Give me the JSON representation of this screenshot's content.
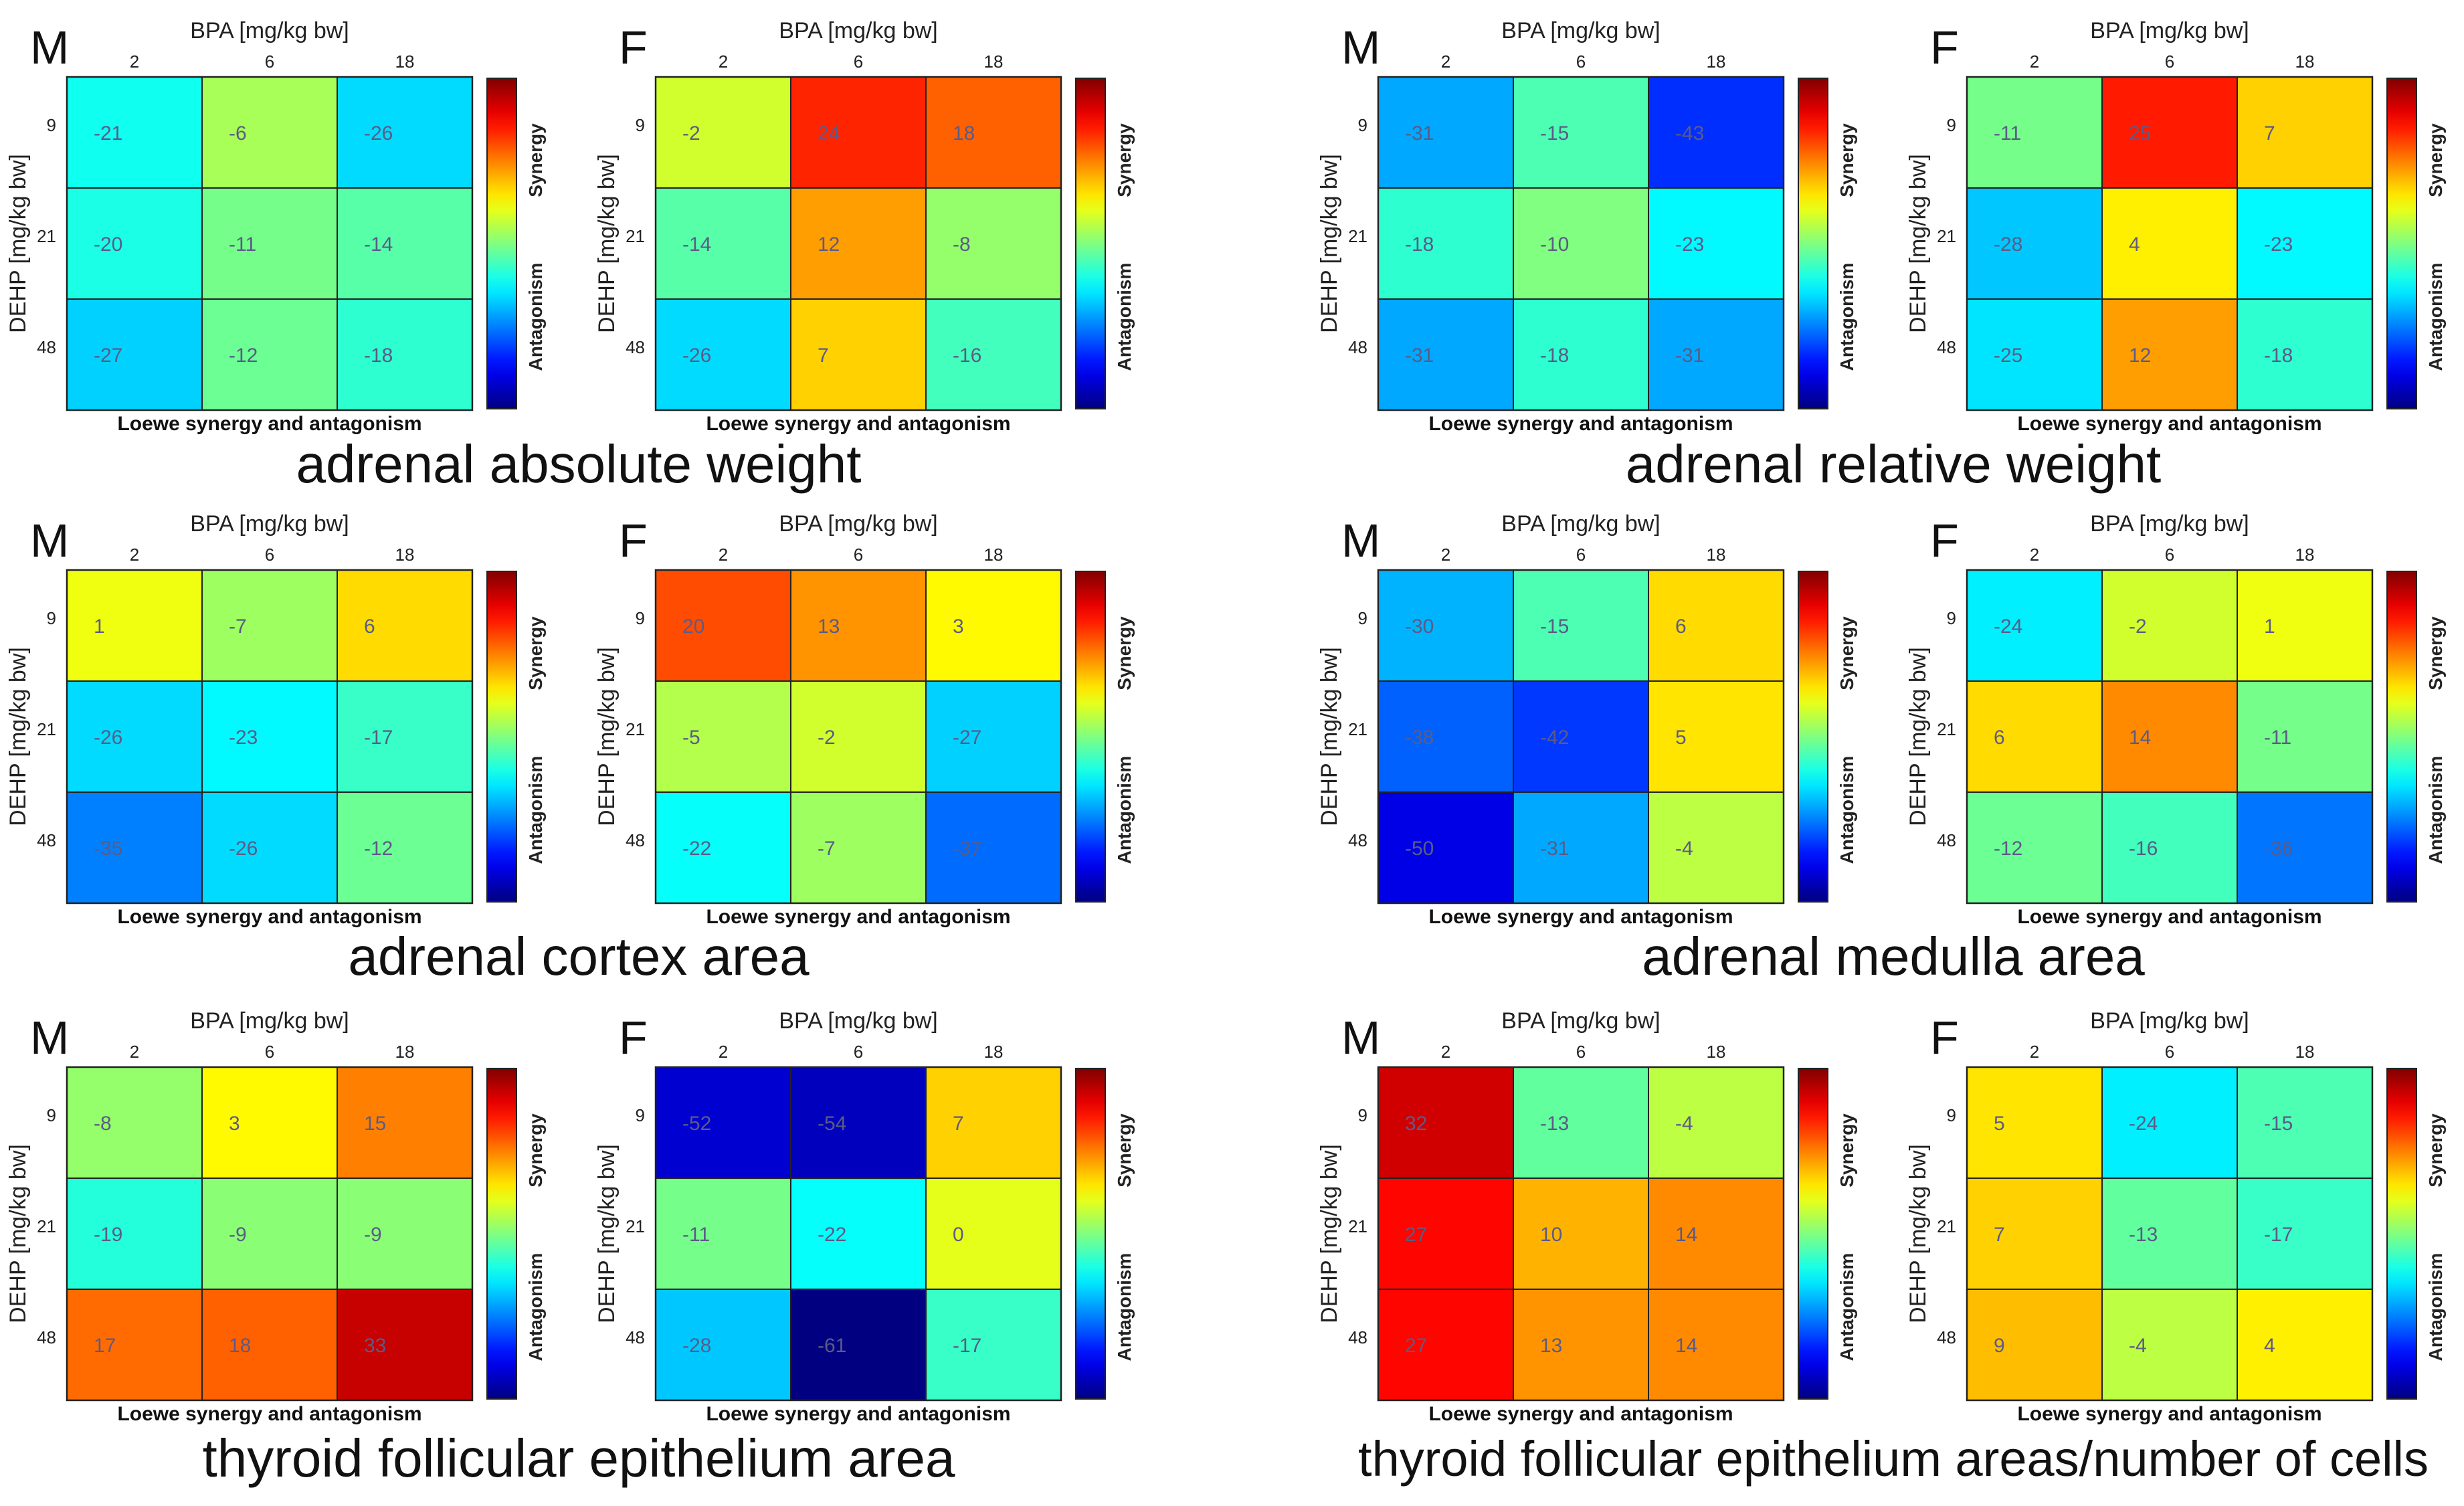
{
  "common": {
    "x_axis_label": "BPA [mg/kg bw]",
    "y_axis_label": "DEHP [mg/kg bw]",
    "x_ticks": [
      "2",
      "6",
      "18"
    ],
    "y_ticks": [
      "9",
      "21",
      "48"
    ],
    "colorbar_top_label": "Synergy",
    "colorbar_bottom_label": "Antagonism",
    "bottom_label": "Loewe synergy and antagonism",
    "value_range": [
      -60,
      40
    ]
  },
  "captions": [
    "adrenal absolute weight",
    "adrenal relative weight",
    "adrenal cortex area",
    "adrenal medulla area",
    "thyroid follicular epithelium area",
    "thyroid follicular epithelium areas/number of cells"
  ],
  "chart_data": [
    {
      "type": "heatmap",
      "panel": "M",
      "group": "adrenal absolute weight",
      "x_categories": [
        "2",
        "6",
        "18"
      ],
      "y_categories": [
        "9",
        "21",
        "48"
      ],
      "values": [
        [
          -21,
          -6,
          -26
        ],
        [
          -20,
          -11,
          -14
        ],
        [
          -27,
          -12,
          -18
        ]
      ]
    },
    {
      "type": "heatmap",
      "panel": "F",
      "group": "adrenal absolute weight",
      "x_categories": [
        "2",
        "6",
        "18"
      ],
      "y_categories": [
        "9",
        "21",
        "48"
      ],
      "values": [
        [
          -2,
          24,
          18
        ],
        [
          -14,
          12,
          -8
        ],
        [
          -26,
          7,
          -16
        ]
      ]
    },
    {
      "type": "heatmap",
      "panel": "M",
      "group": "adrenal relative weight",
      "x_categories": [
        "2",
        "6",
        "18"
      ],
      "y_categories": [
        "9",
        "21",
        "48"
      ],
      "values": [
        [
          -31,
          -15,
          -43
        ],
        [
          -18,
          -10,
          -23
        ],
        [
          -31,
          -18,
          -31
        ]
      ]
    },
    {
      "type": "heatmap",
      "panel": "F",
      "group": "adrenal relative weight",
      "x_categories": [
        "2",
        "6",
        "18"
      ],
      "y_categories": [
        "9",
        "21",
        "48"
      ],
      "values": [
        [
          -11,
          25,
          7
        ],
        [
          -28,
          4,
          -23
        ],
        [
          -25,
          12,
          -18
        ]
      ]
    },
    {
      "type": "heatmap",
      "panel": "M",
      "group": "adrenal cortex area",
      "x_categories": [
        "2",
        "6",
        "18"
      ],
      "y_categories": [
        "9",
        "21",
        "48"
      ],
      "values": [
        [
          1,
          -7,
          6
        ],
        [
          -26,
          -23,
          -17
        ],
        [
          -35,
          -26,
          -12
        ]
      ]
    },
    {
      "type": "heatmap",
      "panel": "F",
      "group": "adrenal cortex area",
      "x_categories": [
        "2",
        "6",
        "18"
      ],
      "y_categories": [
        "9",
        "21",
        "48"
      ],
      "values": [
        [
          20,
          13,
          3
        ],
        [
          -5,
          -2,
          -27
        ],
        [
          -22,
          -7,
          -37
        ]
      ]
    },
    {
      "type": "heatmap",
      "panel": "M",
      "group": "adrenal medulla area",
      "x_categories": [
        "2",
        "6",
        "18"
      ],
      "y_categories": [
        "9",
        "21",
        "48"
      ],
      "values": [
        [
          -30,
          -15,
          6
        ],
        [
          -38,
          -42,
          5
        ],
        [
          -50,
          -31,
          -4
        ]
      ]
    },
    {
      "type": "heatmap",
      "panel": "F",
      "group": "adrenal medulla area",
      "x_categories": [
        "2",
        "6",
        "18"
      ],
      "y_categories": [
        "9",
        "21",
        "48"
      ],
      "values": [
        [
          -24,
          -2,
          1
        ],
        [
          6,
          14,
          -11
        ],
        [
          -12,
          -16,
          -36
        ]
      ]
    },
    {
      "type": "heatmap",
      "panel": "M",
      "group": "thyroid follicular epithelium area",
      "x_categories": [
        "2",
        "6",
        "18"
      ],
      "y_categories": [
        "9",
        "21",
        "48"
      ],
      "values": [
        [
          -8,
          3,
          15
        ],
        [
          -19,
          -9,
          -9
        ],
        [
          17,
          18,
          33
        ]
      ]
    },
    {
      "type": "heatmap",
      "panel": "F",
      "group": "thyroid follicular epithelium area",
      "x_categories": [
        "2",
        "6",
        "18"
      ],
      "y_categories": [
        "9",
        "21",
        "48"
      ],
      "values": [
        [
          -52,
          -54,
          7
        ],
        [
          -11,
          -22,
          0
        ],
        [
          -28,
          -61,
          -17
        ]
      ]
    },
    {
      "type": "heatmap",
      "panel": "M",
      "group": "thyroid follicular epithelium areas/number of cells",
      "x_categories": [
        "2",
        "6",
        "18"
      ],
      "y_categories": [
        "9",
        "21",
        "48"
      ],
      "values": [
        [
          32,
          -13,
          -4
        ],
        [
          27,
          10,
          14
        ],
        [
          27,
          13,
          14
        ]
      ]
    },
    {
      "type": "heatmap",
      "panel": "F",
      "group": "thyroid follicular epithelium areas/number of cells",
      "x_categories": [
        "2",
        "6",
        "18"
      ],
      "y_categories": [
        "9",
        "21",
        "48"
      ],
      "values": [
        [
          5,
          -24,
          -15
        ],
        [
          7,
          -13,
          -17
        ],
        [
          9,
          -4,
          4
        ]
      ]
    }
  ]
}
